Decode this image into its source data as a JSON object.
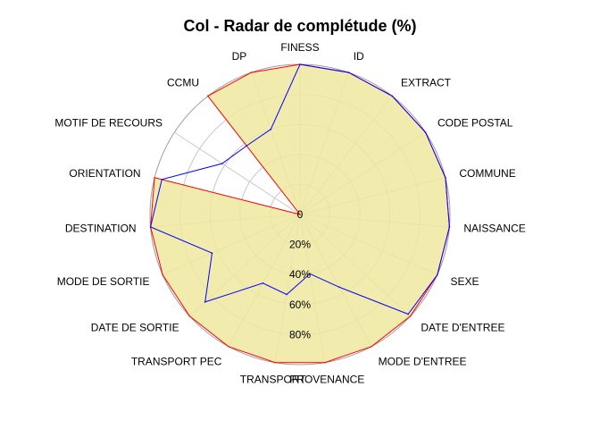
{
  "chart_data": {
    "type": "radar",
    "title": "Col - Radar de complétude (%)",
    "axes": [
      "FINESS",
      "ID",
      "EXTRACT",
      "CODE POSTAL",
      "COMMUNE",
      "NAISSANCE",
      "SEXE",
      "DATE D'ENTREE",
      "MODE D'ENTREE",
      "PROVENANCE",
      "TRANSPORT",
      "TRANSPORT PEC",
      "DATE DE SORTIE",
      "MODE DE SORTIE",
      "DESTINATION",
      "ORIENTATION",
      "MOTIF DE RECOURS",
      "CCMU",
      "DP"
    ],
    "range": [
      0,
      100
    ],
    "tick_labels": [
      "0",
      "20%",
      "40%",
      "60%",
      "80%"
    ],
    "series": [
      {
        "values": [
          100,
          100,
          100,
          100,
          100,
          100,
          100,
          100,
          100,
          100,
          100,
          100,
          100,
          100,
          100,
          100,
          0,
          100,
          100
        ],
        "stroke": "#ff0000",
        "fill": "#eee8a0",
        "fill_opacity": 0.85
      },
      {
        "values": [
          100,
          100,
          100,
          100,
          100,
          100,
          100,
          98,
          55,
          40,
          54,
          52,
          86,
          64,
          100,
          95,
          62,
          58,
          60
        ],
        "stroke": "#0000ff",
        "fill": "none"
      }
    ],
    "grid_color": "#c8c8c8",
    "outer_ring_color": "#9e9e9e"
  }
}
